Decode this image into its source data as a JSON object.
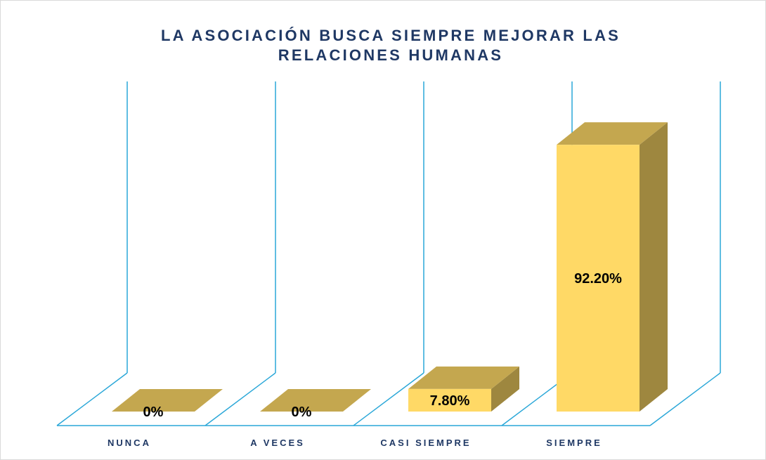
{
  "chart_data": {
    "type": "bar3d",
    "title": "LA ASOCIACIÓN BUSCA SIEMPRE MEJORAR LAS RELACIONES HUMANAS",
    "categories": [
      "NUNCA",
      "A VECES",
      "CASI SIEMPRE",
      "SIEMPRE"
    ],
    "values": [
      0,
      0,
      7.8,
      92.2
    ],
    "value_labels": [
      "0%",
      "0%",
      "7.80%",
      "92.20%"
    ],
    "ylim": [
      0,
      100
    ],
    "color": "#ffd966"
  }
}
